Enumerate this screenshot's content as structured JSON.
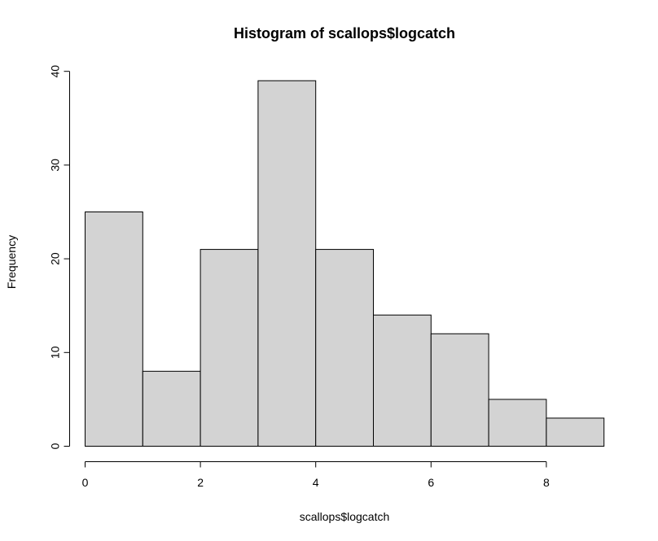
{
  "chart_data": {
    "type": "bar",
    "title": "Histogram of scallops$logcatch",
    "xlabel": "scallops$logcatch",
    "ylabel": "Frequency",
    "bins": [
      {
        "x0": 0,
        "x1": 1,
        "count": 25
      },
      {
        "x0": 1,
        "x1": 2,
        "count": 8
      },
      {
        "x0": 2,
        "x1": 3,
        "count": 21
      },
      {
        "x0": 3,
        "x1": 4,
        "count": 39
      },
      {
        "x0": 4,
        "x1": 5,
        "count": 21
      },
      {
        "x0": 5,
        "x1": 6,
        "count": 14
      },
      {
        "x0": 6,
        "x1": 7,
        "count": 12
      },
      {
        "x0": 7,
        "x1": 8,
        "count": 5
      },
      {
        "x0": 8,
        "x1": 9,
        "count": 3
      }
    ],
    "xlim": [
      0,
      9
    ],
    "ylim": [
      0,
      40
    ],
    "x_ticks": [
      "0",
      "2",
      "4",
      "6",
      "8"
    ],
    "y_ticks": [
      "0",
      "10",
      "20",
      "30",
      "40"
    ],
    "grid": false,
    "colors": {
      "bar_fill": "#d3d3d3",
      "bar_stroke": "#000000"
    }
  }
}
